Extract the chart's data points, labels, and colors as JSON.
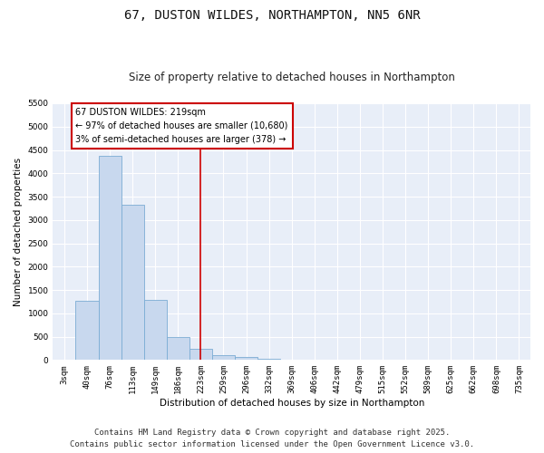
{
  "title": "67, DUSTON WILDES, NORTHAMPTON, NN5 6NR",
  "subtitle": "Size of property relative to detached houses in Northampton",
  "xlabel": "Distribution of detached houses by size in Northampton",
  "ylabel": "Number of detached properties",
  "bar_color": "#c8d8ee",
  "bar_edge_color": "#7bacd4",
  "categories": [
    "3sqm",
    "40sqm",
    "76sqm",
    "113sqm",
    "149sqm",
    "186sqm",
    "223sqm",
    "259sqm",
    "296sqm",
    "332sqm",
    "369sqm",
    "406sqm",
    "442sqm",
    "479sqm",
    "515sqm",
    "552sqm",
    "589sqm",
    "625sqm",
    "662sqm",
    "698sqm",
    "735sqm"
  ],
  "values": [
    0,
    1270,
    4380,
    3320,
    1290,
    500,
    230,
    100,
    60,
    20,
    0,
    0,
    0,
    0,
    0,
    0,
    0,
    0,
    0,
    0,
    0
  ],
  "ylim": [
    0,
    5500
  ],
  "yticks": [
    0,
    500,
    1000,
    1500,
    2000,
    2500,
    3000,
    3500,
    4000,
    4500,
    5000,
    5500
  ],
  "vline_x": 6,
  "vline_color": "#cc0000",
  "annotation_text": "67 DUSTON WILDES: 219sqm\n← 97% of detached houses are smaller (10,680)\n3% of semi-detached houses are larger (378) →",
  "annotation_box_facecolor": "#ffffff",
  "annotation_box_edgecolor": "#cc0000",
  "footer_line1": "Contains HM Land Registry data © Crown copyright and database right 2025.",
  "footer_line2": "Contains public sector information licensed under the Open Government Licence v3.0.",
  "background_color": "#ffffff",
  "plot_bg_color": "#e8eef8",
  "title_fontsize": 10,
  "subtitle_fontsize": 8.5,
  "tick_fontsize": 6.5,
  "ylabel_fontsize": 7.5,
  "xlabel_fontsize": 7.5,
  "annotation_fontsize": 7,
  "footer_fontsize": 6.5,
  "grid_color": "#ffffff"
}
